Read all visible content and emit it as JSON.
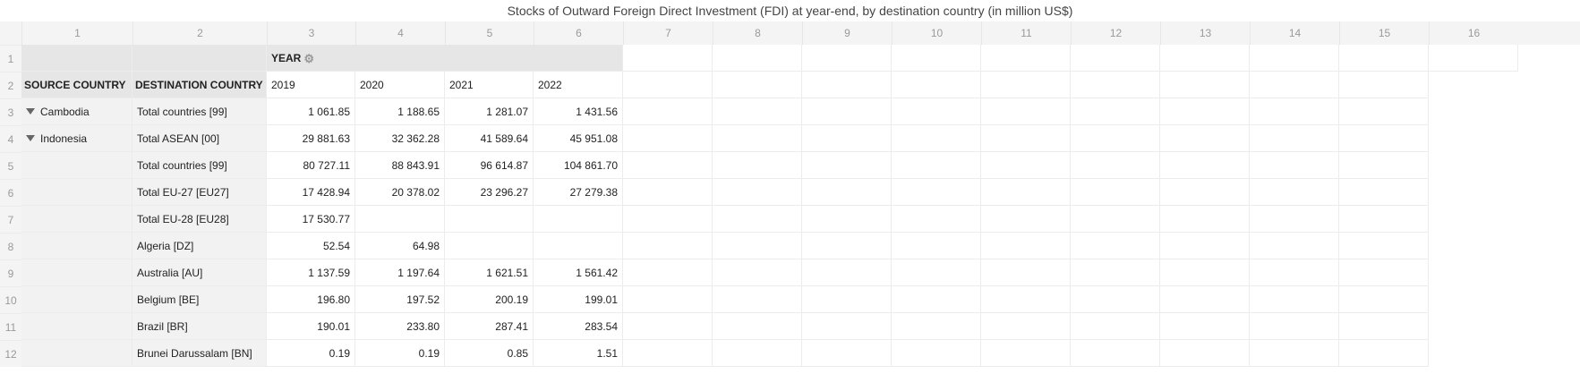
{
  "title": "Stocks of Outward Foreign Direct Investment (FDI) at year-end, by destination country (in million US$)",
  "column_numbers": [
    "1",
    "2",
    "3",
    "4",
    "5",
    "6",
    "7",
    "8",
    "9",
    "10",
    "11",
    "12",
    "13",
    "14",
    "15",
    "16"
  ],
  "row_numbers": [
    "1",
    "2",
    "3",
    "4",
    "5",
    "6",
    "7",
    "8",
    "9",
    "10",
    "11",
    "12"
  ],
  "headers": {
    "year": "YEAR",
    "source_country": "SOURCE COUNTRY",
    "destination_country": "DESTINATION COUNTRY",
    "years": [
      "2019",
      "2020",
      "2021",
      "2022"
    ]
  },
  "rows": [
    {
      "source": "Cambodia",
      "destination": "Total countries [99]",
      "values": [
        "1 061.85",
        "1 188.65",
        "1 281.07",
        "1 431.56"
      ]
    },
    {
      "source": "Indonesia",
      "destination": "Total ASEAN [00]",
      "values": [
        "29 881.63",
        "32 362.28",
        "41 589.64",
        "45 951.08"
      ]
    },
    {
      "source": "",
      "destination": "Total countries [99]",
      "values": [
        "80 727.11",
        "88 843.91",
        "96 614.87",
        "104 861.70"
      ]
    },
    {
      "source": "",
      "destination": "Total EU-27 [EU27]",
      "values": [
        "17 428.94",
        "20 378.02",
        "23 296.27",
        "27 279.38"
      ]
    },
    {
      "source": "",
      "destination": "Total EU-28 [EU28]",
      "values": [
        "17 530.77",
        "",
        "",
        ""
      ]
    },
    {
      "source": "",
      "destination": "Algeria [DZ]",
      "values": [
        "52.54",
        "64.98",
        "",
        ""
      ]
    },
    {
      "source": "",
      "destination": "Australia [AU]",
      "values": [
        "1 137.59",
        "1 197.64",
        "1 621.51",
        "1 561.42"
      ]
    },
    {
      "source": "",
      "destination": "Belgium [BE]",
      "values": [
        "196.80",
        "197.52",
        "200.19",
        "199.01"
      ]
    },
    {
      "source": "",
      "destination": "Brazil [BR]",
      "values": [
        "190.01",
        "233.80",
        "287.41",
        "283.54"
      ]
    },
    {
      "source": "",
      "destination": "Brunei Darussalam [BN]",
      "values": [
        "0.19",
        "0.19",
        "0.85",
        "1.51"
      ]
    }
  ]
}
